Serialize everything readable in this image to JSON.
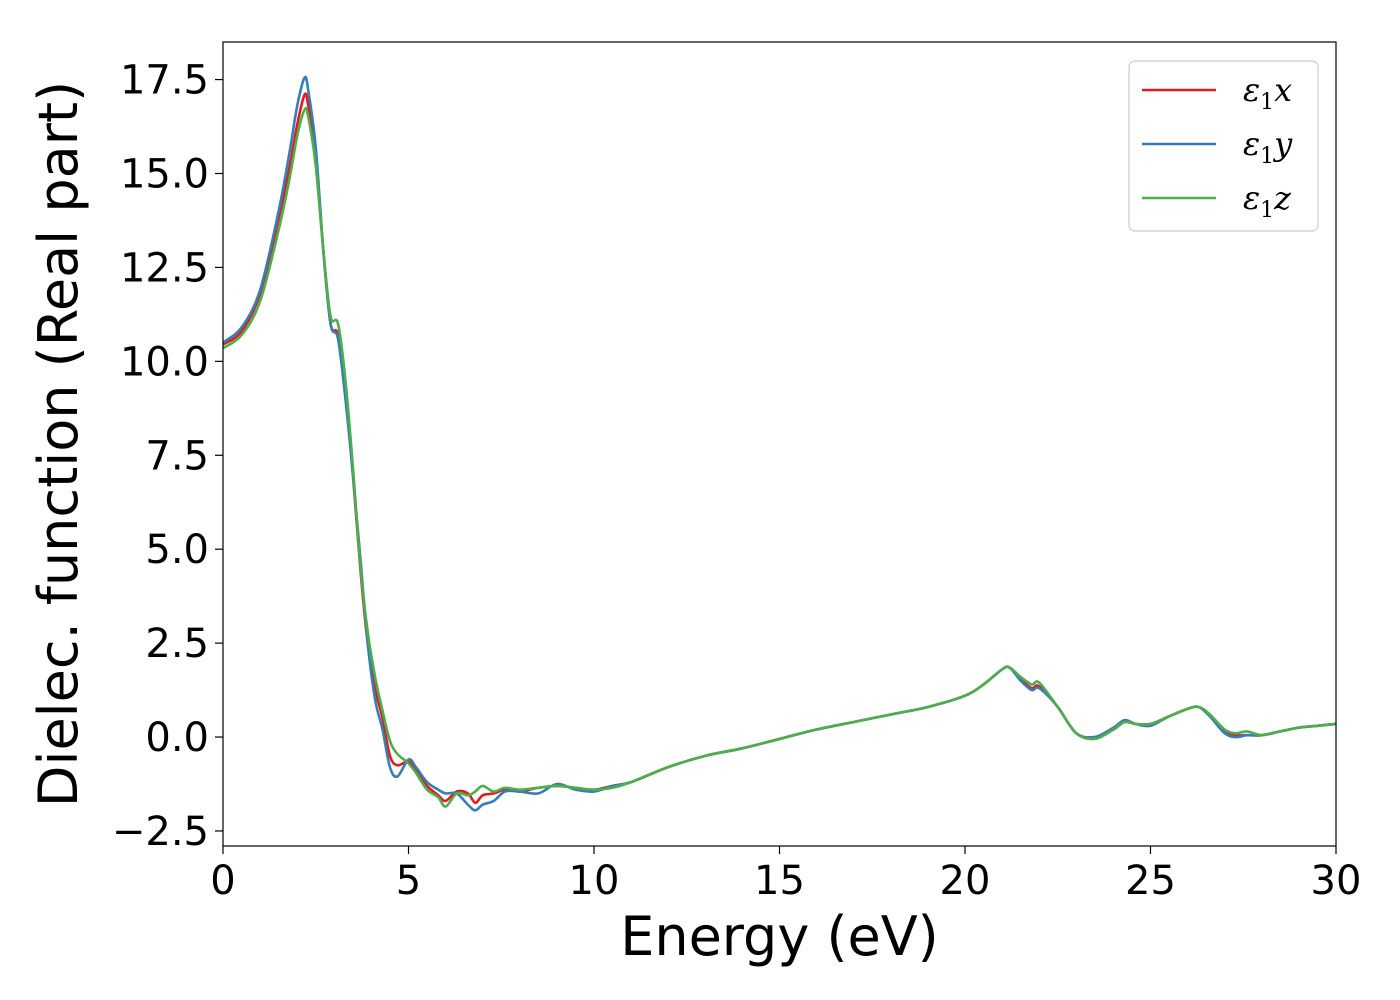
{
  "chart_data": {
    "type": "line",
    "title": "",
    "xlabel": "Energy (eV)",
    "ylabel": "Dielec. function (Real part)",
    "xlim": [
      0,
      30
    ],
    "ylim": [
      -2.9,
      18.5
    ],
    "xticks": [
      0,
      5,
      10,
      15,
      20,
      25,
      30
    ],
    "xtick_labels": [
      "0",
      "5",
      "10",
      "15",
      "20",
      "25",
      "30"
    ],
    "yticks": [
      -2.5,
      0.0,
      2.5,
      5.0,
      7.5,
      10.0,
      12.5,
      15.0,
      17.5
    ],
    "ytick_labels": [
      "−2.5",
      "0.0",
      "2.5",
      "5.0",
      "7.5",
      "10.0",
      "12.5",
      "15.0",
      "17.5"
    ],
    "grid": false,
    "legend_position": "top-right",
    "series": [
      {
        "name_main": "ε",
        "name_sub": "1",
        "name_suffix": "x",
        "color": "#e41a1c",
        "x": [
          0,
          0.5,
          1.0,
          1.5,
          1.8,
          2.0,
          2.2,
          2.3,
          2.5,
          2.7,
          2.9,
          3.1,
          3.3,
          3.5,
          3.7,
          3.9,
          4.1,
          4.3,
          4.5,
          4.7,
          5.0,
          5.2,
          5.5,
          5.8,
          6.0,
          6.3,
          6.6,
          6.8,
          7.0,
          7.3,
          7.6,
          8.0,
          8.5,
          9.0,
          9.5,
          10.0,
          10.5,
          11.0,
          12.0,
          13.0,
          14.0,
          15.0,
          16.0,
          17.0,
          18.0,
          19.0,
          20.0,
          20.5,
          21.0,
          21.2,
          21.5,
          21.8,
          22.0,
          22.5,
          23.0,
          23.5,
          24.0,
          24.3,
          24.6,
          25.0,
          25.5,
          26.0,
          26.3,
          26.6,
          27.0,
          27.3,
          27.6,
          28.0,
          28.5,
          29.0,
          29.5,
          30.0
        ],
        "y": [
          10.45,
          10.8,
          11.8,
          13.8,
          15.2,
          16.3,
          17.1,
          16.8,
          15.5,
          13.0,
          11.0,
          10.7,
          9.2,
          7.0,
          4.5,
          2.5,
          1.3,
          0.5,
          -0.5,
          -0.75,
          -0.65,
          -0.9,
          -1.3,
          -1.55,
          -1.7,
          -1.45,
          -1.5,
          -1.75,
          -1.55,
          -1.5,
          -1.4,
          -1.45,
          -1.35,
          -1.3,
          -1.35,
          -1.4,
          -1.3,
          -1.2,
          -0.8,
          -0.5,
          -0.3,
          -0.05,
          0.2,
          0.4,
          0.6,
          0.8,
          1.1,
          1.4,
          1.8,
          1.85,
          1.55,
          1.3,
          1.35,
          0.8,
          0.1,
          0.0,
          0.2,
          0.4,
          0.35,
          0.35,
          0.55,
          0.75,
          0.8,
          0.6,
          0.15,
          0.05,
          0.05,
          0.05,
          0.15,
          0.25,
          0.3,
          0.35
        ]
      },
      {
        "name_main": "ε",
        "name_sub": "1",
        "name_suffix": "y",
        "color": "#377eb8",
        "x": [
          0,
          0.5,
          1.0,
          1.5,
          1.8,
          2.0,
          2.2,
          2.3,
          2.5,
          2.7,
          2.9,
          3.1,
          3.3,
          3.5,
          3.7,
          3.9,
          4.1,
          4.3,
          4.5,
          4.7,
          5.0,
          5.2,
          5.5,
          5.8,
          6.0,
          6.3,
          6.6,
          6.8,
          7.0,
          7.3,
          7.6,
          8.0,
          8.5,
          9.0,
          9.5,
          10.0,
          10.5,
          11.0,
          12.0,
          13.0,
          14.0,
          15.0,
          16.0,
          17.0,
          18.0,
          19.0,
          20.0,
          20.5,
          21.0,
          21.2,
          21.5,
          21.8,
          22.0,
          22.5,
          23.0,
          23.5,
          24.0,
          24.3,
          24.6,
          25.0,
          25.5,
          26.0,
          26.3,
          26.6,
          27.0,
          27.3,
          27.6,
          28.0,
          28.5,
          29.0,
          29.5,
          30.0
        ],
        "y": [
          10.5,
          10.9,
          11.9,
          14.0,
          15.6,
          16.8,
          17.55,
          17.2,
          15.7,
          13.0,
          11.0,
          10.6,
          9.0,
          7.0,
          4.8,
          2.5,
          1.0,
          0.2,
          -0.8,
          -1.05,
          -0.6,
          -0.8,
          -1.2,
          -1.4,
          -1.5,
          -1.5,
          -1.8,
          -1.95,
          -1.8,
          -1.7,
          -1.45,
          -1.45,
          -1.5,
          -1.25,
          -1.4,
          -1.45,
          -1.3,
          -1.2,
          -0.8,
          -0.5,
          -0.3,
          -0.05,
          0.2,
          0.4,
          0.6,
          0.8,
          1.1,
          1.4,
          1.8,
          1.85,
          1.5,
          1.25,
          1.3,
          0.8,
          0.1,
          0.0,
          0.25,
          0.45,
          0.35,
          0.3,
          0.55,
          0.75,
          0.8,
          0.55,
          0.1,
          0.0,
          0.05,
          0.05,
          0.15,
          0.25,
          0.3,
          0.35
        ]
      },
      {
        "name_main": "ε",
        "name_sub": "1",
        "name_suffix": "z",
        "color": "#4daf4a",
        "x": [
          0,
          0.5,
          1.0,
          1.5,
          1.8,
          2.0,
          2.2,
          2.3,
          2.5,
          2.7,
          2.9,
          3.1,
          3.3,
          3.5,
          3.7,
          3.9,
          4.1,
          4.3,
          4.5,
          4.7,
          5.0,
          5.2,
          5.5,
          5.8,
          6.0,
          6.3,
          6.6,
          6.8,
          7.0,
          7.3,
          7.6,
          8.0,
          8.5,
          9.0,
          9.5,
          10.0,
          10.5,
          11.0,
          12.0,
          13.0,
          14.0,
          15.0,
          16.0,
          17.0,
          18.0,
          19.0,
          20.0,
          20.5,
          21.0,
          21.2,
          21.5,
          21.8,
          22.0,
          22.5,
          23.0,
          23.5,
          24.0,
          24.3,
          24.6,
          25.0,
          25.5,
          26.0,
          26.3,
          26.6,
          27.0,
          27.3,
          27.6,
          28.0,
          28.5,
          29.0,
          29.5,
          30.0
        ],
        "y": [
          10.35,
          10.7,
          11.6,
          13.5,
          14.9,
          16.0,
          16.7,
          16.5,
          15.2,
          13.0,
          11.2,
          11.0,
          9.5,
          7.2,
          4.6,
          2.8,
          1.6,
          0.7,
          -0.1,
          -0.45,
          -0.7,
          -0.95,
          -1.4,
          -1.6,
          -1.85,
          -1.5,
          -1.55,
          -1.45,
          -1.3,
          -1.45,
          -1.35,
          -1.4,
          -1.35,
          -1.3,
          -1.35,
          -1.4,
          -1.35,
          -1.2,
          -0.8,
          -0.5,
          -0.3,
          -0.05,
          0.2,
          0.4,
          0.6,
          0.8,
          1.1,
          1.4,
          1.8,
          1.85,
          1.6,
          1.4,
          1.45,
          0.8,
          0.1,
          -0.05,
          0.2,
          0.4,
          0.35,
          0.35,
          0.55,
          0.75,
          0.8,
          0.6,
          0.2,
          0.1,
          0.15,
          0.05,
          0.15,
          0.25,
          0.3,
          0.35
        ]
      }
    ]
  }
}
